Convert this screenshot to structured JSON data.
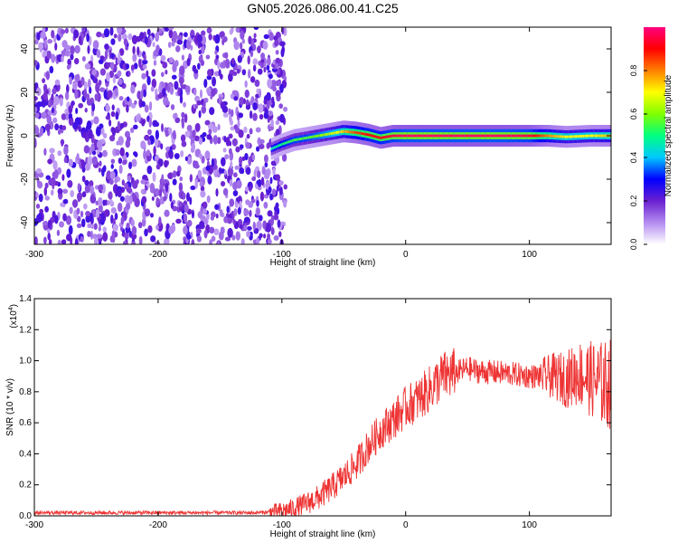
{
  "figure_title": "GN05.2026.086.00.41.C25",
  "chart_data": [
    {
      "type": "heatmap",
      "xlabel": "Height of straight line (km)",
      "ylabel": "Frequency (Hz)",
      "xlim": [
        -300,
        166
      ],
      "ylim": [
        -50,
        50
      ],
      "x_ticks": [
        -300,
        -200,
        -100,
        0,
        100
      ],
      "x_tick_labels": [
        "-300",
        "-200",
        "-100",
        "0",
        "100"
      ],
      "y_ticks": [
        -40,
        -20,
        0,
        20,
        40
      ],
      "y_tick_labels": [
        "-40",
        "-20",
        "0",
        "20",
        "40"
      ],
      "colorbar": {
        "label": "Normalized spectral amplitude",
        "range": [
          0,
          1
        ],
        "ticks": [
          0.0,
          0.2,
          0.4,
          0.6,
          0.8
        ],
        "tick_labels": [
          "0.0",
          "0.2",
          "0.4",
          "0.6",
          "0.8"
        ],
        "colors": [
          "#ffffff",
          "#b48cf0",
          "#6a1fd0",
          "#0000ff",
          "#00c8ff",
          "#00ff80",
          "#80ff00",
          "#ffff00",
          "#ff8000",
          "#ff0000",
          "#ff0080"
        ]
      },
      "noise_region_x": [
        -300,
        -97
      ],
      "ridge": [
        {
          "x": -108,
          "freq": -6,
          "amp": 0.45
        },
        {
          "x": -100,
          "freq": -4,
          "amp": 0.5
        },
        {
          "x": -90,
          "freq": -2,
          "amp": 0.55
        },
        {
          "x": -80,
          "freq": -1,
          "amp": 0.55
        },
        {
          "x": -70,
          "freq": 0,
          "amp": 0.6
        },
        {
          "x": -60,
          "freq": 1,
          "amp": 0.65
        },
        {
          "x": -50,
          "freq": 2,
          "amp": 0.75
        },
        {
          "x": -40,
          "freq": 1.5,
          "amp": 0.85
        },
        {
          "x": -30,
          "freq": 0.5,
          "amp": 0.9
        },
        {
          "x": -20,
          "freq": -1,
          "amp": 0.9
        },
        {
          "x": -10,
          "freq": 0,
          "amp": 0.95
        },
        {
          "x": 0,
          "freq": 0,
          "amp": 0.98
        },
        {
          "x": 20,
          "freq": 0,
          "amp": 0.98
        },
        {
          "x": 50,
          "freq": 0,
          "amp": 0.98
        },
        {
          "x": 80,
          "freq": 0,
          "amp": 0.98
        },
        {
          "x": 100,
          "freq": 0,
          "amp": 0.95
        },
        {
          "x": 115,
          "freq": 0,
          "amp": 0.8
        },
        {
          "x": 130,
          "freq": -0.5,
          "amp": 0.7
        },
        {
          "x": 150,
          "freq": 0,
          "amp": 0.7
        },
        {
          "x": 166,
          "freq": 0,
          "amp": 0.75
        }
      ]
    },
    {
      "type": "line",
      "xlabel": "Height of straight line (km)",
      "ylabel": "SNR (10 * v/v)",
      "y_multiplier_label": "(x10",
      "y_multiplier_exponent": "4",
      "y_multiplier_close": ")",
      "xlim": [
        -300,
        166
      ],
      "ylim": [
        0,
        1.4
      ],
      "x_ticks": [
        -300,
        -200,
        -100,
        0,
        100
      ],
      "x_tick_labels": [
        "-300",
        "-200",
        "-100",
        "0",
        "100"
      ],
      "y_ticks": [
        0.0,
        0.2,
        0.4,
        0.6,
        0.8,
        1.0,
        1.2,
        1.4
      ],
      "y_tick_labels": [
        "0.0",
        "0.2",
        "0.4",
        "0.6",
        "0.8",
        "1.0",
        "1.2",
        "1.4"
      ],
      "color": "#ee3333",
      "series": [
        {
          "x": [
            -300,
            -250,
            -200,
            -150,
            -120,
            -100,
            -90,
            -80,
            -70,
            -60,
            -50,
            -40,
            -30,
            -20,
            -10,
            0,
            10,
            20,
            30,
            40,
            50,
            60,
            80,
            100,
            120,
            130,
            140,
            150,
            160,
            166
          ],
          "y": [
            0.02,
            0.02,
            0.02,
            0.02,
            0.02,
            0.03,
            0.05,
            0.08,
            0.12,
            0.18,
            0.25,
            0.33,
            0.45,
            0.55,
            0.62,
            0.7,
            0.75,
            0.82,
            0.9,
            0.92,
            0.95,
            0.93,
            0.92,
            0.9,
            0.9,
            0.88,
            0.92,
            0.88,
            0.85,
            0.85
          ]
        }
      ]
    }
  ]
}
